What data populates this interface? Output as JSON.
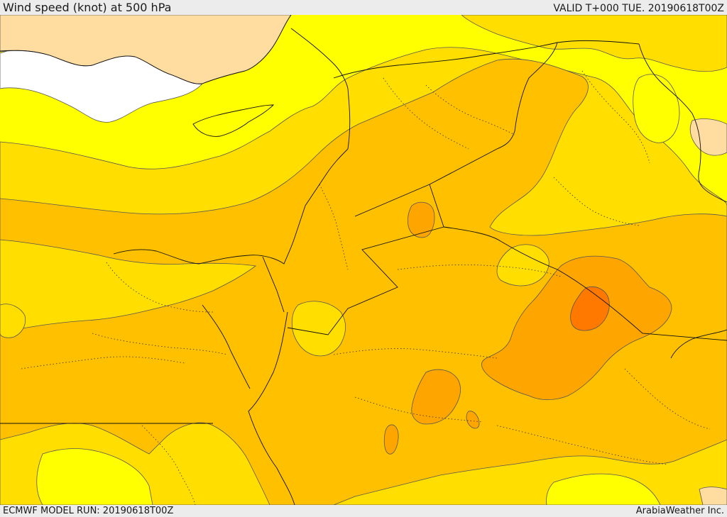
{
  "header": {
    "title": "Wind speed (knot) at 500 hPa",
    "valid": "VALID T+000 TUE. 20190618T00Z"
  },
  "footer": {
    "model_run": "ECMWF MODEL RUN: 20190618T00Z",
    "credit": "ArabiaWeather Inc."
  },
  "colors": {
    "bright_yellow": "#ffff00",
    "yellow": "#ffde00",
    "amber": "#ffc000",
    "orange_light": "#ffa500",
    "orange": "#ff8c00",
    "orange_dark": "#ff7800",
    "land_low": "#ffdca0",
    "no_data": "#ffffff",
    "contour": "#555555",
    "border": "#111111"
  }
}
